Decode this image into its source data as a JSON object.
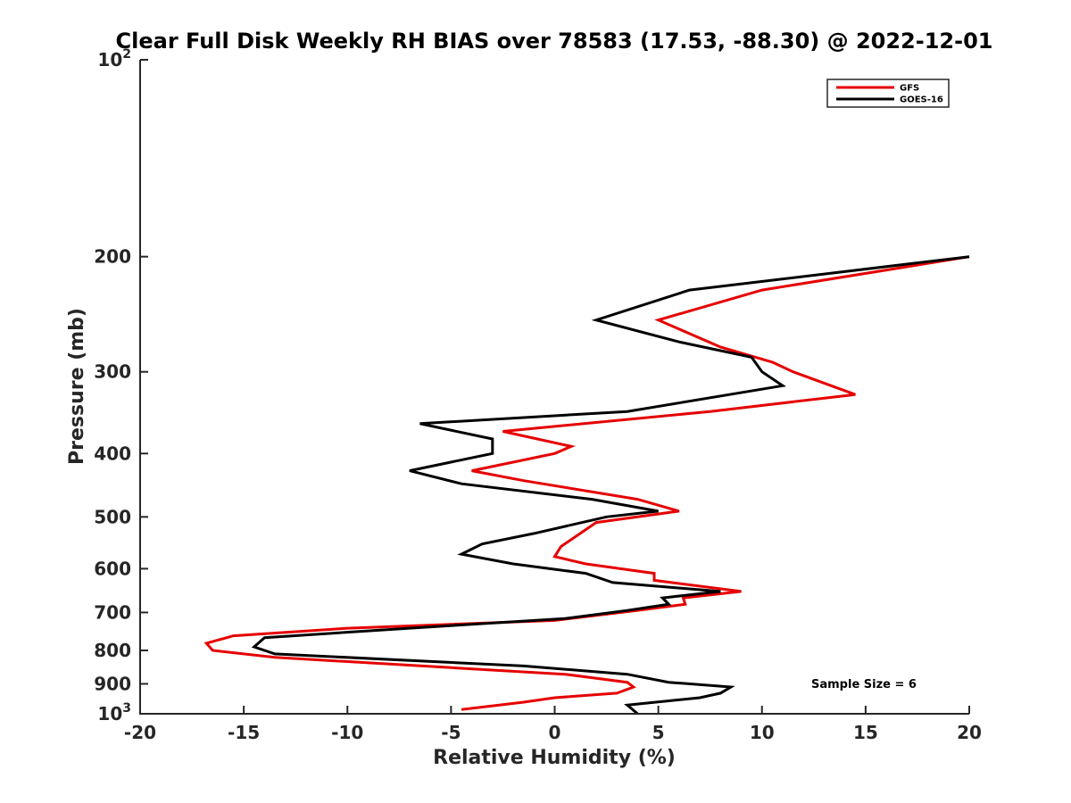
{
  "chart_data": {
    "type": "line",
    "title": "Clear Full Disk Weekly RH BIAS over 78583 (17.53, -88.30) @ 2022-12-01",
    "xlabel": "Relative Humidity (%)",
    "ylabel": "Pressure (mb)",
    "xlim": [
      -20,
      20
    ],
    "ylim": [
      100,
      1000
    ],
    "yscale": "log",
    "y_reversed": true,
    "x_ticks": [
      -20,
      -15,
      -10,
      -5,
      0,
      5,
      10,
      15,
      20
    ],
    "x_tick_labels": [
      "-20",
      "-15",
      "-10",
      "-5",
      "0",
      "5",
      "10",
      "15",
      "20"
    ],
    "y_ticks": [
      100,
      200,
      300,
      400,
      500,
      600,
      700,
      800,
      900,
      1000
    ],
    "y_tick_labels": [
      {
        "base": "10",
        "exp": "2"
      },
      {
        "base": "200",
        "exp": ""
      },
      {
        "base": "300",
        "exp": ""
      },
      {
        "base": "400",
        "exp": ""
      },
      {
        "base": "500",
        "exp": ""
      },
      {
        "base": "600",
        "exp": ""
      },
      {
        "base": "700",
        "exp": ""
      },
      {
        "base": "800",
        "exp": ""
      },
      {
        "base": "900",
        "exp": ""
      },
      {
        "base": "10",
        "exp": "3"
      }
    ],
    "grid": false,
    "legend_position": "top-right",
    "annotation": "Sample Size = 6",
    "series": [
      {
        "name": "GFS",
        "color": "#e60000",
        "points": [
          [
            20.0,
            200
          ],
          [
            10.0,
            225
          ],
          [
            5.0,
            250
          ],
          [
            8.0,
            275
          ],
          [
            10.5,
            290
          ],
          [
            11.5,
            300
          ],
          [
            14.5,
            325
          ],
          [
            7.5,
            345
          ],
          [
            -2.5,
            370
          ],
          [
            0.8,
            390
          ],
          [
            0.0,
            400
          ],
          [
            -4.0,
            425
          ],
          [
            -1.5,
            440
          ],
          [
            4.0,
            470
          ],
          [
            6.0,
            490
          ],
          [
            2.0,
            510
          ],
          [
            0.3,
            555
          ],
          [
            0.0,
            575
          ],
          [
            1.5,
            590
          ],
          [
            4.8,
            610
          ],
          [
            4.8,
            625
          ],
          [
            9.0,
            650
          ],
          [
            6.2,
            665
          ],
          [
            6.3,
            680
          ],
          [
            4.0,
            695
          ],
          [
            0.0,
            720
          ],
          [
            -10.0,
            740
          ],
          [
            -15.5,
            760
          ],
          [
            -16.8,
            780
          ],
          [
            -16.5,
            800
          ],
          [
            -13.5,
            820
          ],
          [
            -5.0,
            850
          ],
          [
            0.5,
            870
          ],
          [
            3.5,
            895
          ],
          [
            3.8,
            910
          ],
          [
            3.0,
            930
          ],
          [
            0.0,
            945
          ],
          [
            -1.5,
            960
          ],
          [
            -4.5,
            985
          ]
        ]
      },
      {
        "name": "GOES-16",
        "color": "#000000",
        "points": [
          [
            20.0,
            200
          ],
          [
            6.5,
            225
          ],
          [
            2.0,
            250
          ],
          [
            6.0,
            270
          ],
          [
            9.5,
            285
          ],
          [
            10.0,
            300
          ],
          [
            11.0,
            315
          ],
          [
            3.5,
            345
          ],
          [
            -6.5,
            360
          ],
          [
            -3.0,
            380
          ],
          [
            -3.0,
            400
          ],
          [
            -7.0,
            425
          ],
          [
            -4.5,
            445
          ],
          [
            1.8,
            470
          ],
          [
            5.0,
            490
          ],
          [
            2.5,
            500
          ],
          [
            -1.0,
            530
          ],
          [
            -3.5,
            550
          ],
          [
            -4.5,
            570
          ],
          [
            -2.0,
            590
          ],
          [
            1.5,
            610
          ],
          [
            2.8,
            630
          ],
          [
            8.0,
            650
          ],
          [
            5.2,
            665
          ],
          [
            5.5,
            680
          ],
          [
            3.5,
            695
          ],
          [
            0.5,
            715
          ],
          [
            -7.0,
            740
          ],
          [
            -14.0,
            765
          ],
          [
            -14.5,
            790
          ],
          [
            -13.5,
            810
          ],
          [
            -1.5,
            845
          ],
          [
            3.5,
            870
          ],
          [
            5.5,
            895
          ],
          [
            8.5,
            910
          ],
          [
            8.0,
            930
          ],
          [
            7.0,
            945
          ],
          [
            3.5,
            970
          ],
          [
            4.0,
            1000
          ]
        ]
      }
    ]
  }
}
